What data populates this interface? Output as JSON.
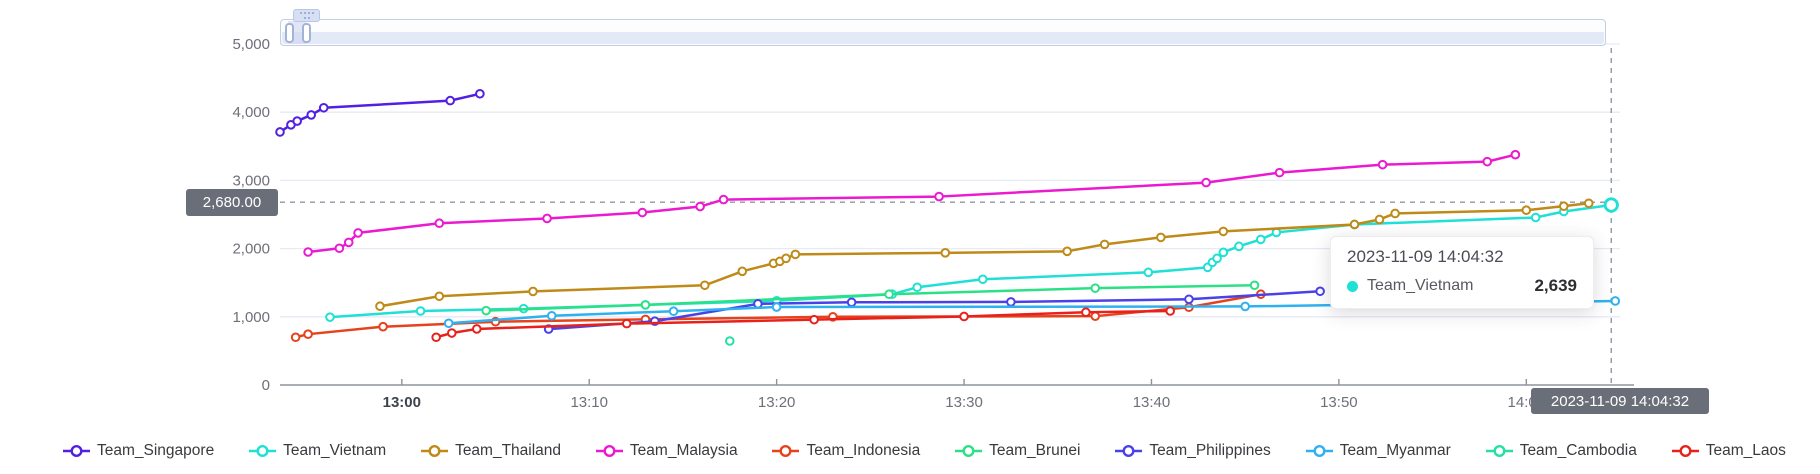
{
  "theme": {
    "grid_line_color": "#e7eaf3",
    "axis_line_color": "#8d939e",
    "pointer_dash_color": "#8f96a3",
    "pointer_label_bg": "#696e78"
  },
  "chart_data": {
    "type": "line",
    "title": "",
    "xlabel": "",
    "ylabel": "",
    "grid": true,
    "legend_position": "bottom",
    "x_axis": {
      "range": [
        "12:53:30",
        "14:05:00"
      ],
      "ticks": [
        {
          "label": "13:00",
          "time": "13:00:00",
          "emphasis": true
        },
        {
          "label": "13:10",
          "time": "13:10:00",
          "emphasis": false
        },
        {
          "label": "13:20",
          "time": "13:20:00",
          "emphasis": false
        },
        {
          "label": "13:30",
          "time": "13:30:00",
          "emphasis": false
        },
        {
          "label": "13:40",
          "time": "13:40:00",
          "emphasis": false
        },
        {
          "label": "13:50",
          "time": "13:50:00",
          "emphasis": false
        },
        {
          "label": "14:00",
          "time": "14:00:00",
          "emphasis": false
        }
      ]
    },
    "y_axis": {
      "range": [
        0,
        5000
      ],
      "ticks": [
        {
          "label": "0",
          "value": 0
        },
        {
          "label": "1,000",
          "value": 1000
        },
        {
          "label": "2,000",
          "value": 2000
        },
        {
          "label": "3,000",
          "value": 3000
        },
        {
          "label": "4,000",
          "value": 4000
        },
        {
          "label": "5,000",
          "value": 5000
        }
      ]
    },
    "series": [
      {
        "name": "Team_Singapore",
        "color": "#5220e0",
        "points": [
          [
            "12:53:30",
            3710
          ],
          [
            "12:54:05",
            3815
          ],
          [
            "12:54:25",
            3870
          ],
          [
            "12:55:10",
            3960
          ],
          [
            "12:55:50",
            4065
          ],
          [
            "13:02:35",
            4170
          ],
          [
            "13:04:10",
            4270
          ]
        ]
      },
      {
        "name": "Team_Vietnam",
        "color": "#1ee0d5",
        "emphasized_last": true,
        "points": [
          [
            "12:56:10",
            995
          ],
          [
            "13:01:00",
            1085
          ],
          [
            "13:06:30",
            1120
          ],
          [
            "13:13:00",
            1175
          ],
          [
            "13:20:00",
            1235
          ],
          [
            "13:26:10",
            1331
          ],
          [
            "13:27:30",
            1433
          ],
          [
            "13:31:00",
            1550
          ],
          [
            "13:39:50",
            1652
          ],
          [
            "13:43:00",
            1725
          ],
          [
            "13:43:15",
            1798
          ],
          [
            "13:43:30",
            1857
          ],
          [
            "13:43:50",
            1945
          ],
          [
            "13:44:40",
            2033
          ],
          [
            "13:45:50",
            2135
          ],
          [
            "13:46:40",
            2237
          ],
          [
            "13:50:50",
            2354
          ],
          [
            "14:00:30",
            2456
          ],
          [
            "14:02:00",
            2544
          ],
          [
            "14:04:32",
            2639
          ]
        ]
      },
      {
        "name": "Team_Thailand",
        "color": "#bf8a18",
        "points": [
          [
            "12:58:50",
            1155
          ],
          [
            "13:02:00",
            1301
          ],
          [
            "13:07:00",
            1372
          ],
          [
            "13:16:10",
            1462
          ],
          [
            "13:18:10",
            1667
          ],
          [
            "13:19:50",
            1784
          ],
          [
            "13:20:10",
            1813
          ],
          [
            "13:20:30",
            1857
          ],
          [
            "13:21:00",
            1915
          ],
          [
            "13:29:00",
            1938
          ],
          [
            "13:35:30",
            1960
          ],
          [
            "13:37:30",
            2062
          ],
          [
            "13:40:30",
            2164
          ],
          [
            "13:43:50",
            2252
          ],
          [
            "13:50:50",
            2354
          ],
          [
            "13:52:10",
            2427
          ],
          [
            "13:53:00",
            2515
          ],
          [
            "14:00:00",
            2563
          ],
          [
            "14:02:00",
            2622
          ],
          [
            "14:03:20",
            2665
          ]
        ]
      },
      {
        "name": "Team_Malaysia",
        "color": "#eb1ad0",
        "points": [
          [
            "12:55:00",
            1950
          ],
          [
            "12:56:40",
            2005
          ],
          [
            "12:57:10",
            2091
          ],
          [
            "12:57:40",
            2230
          ],
          [
            "13:02:00",
            2372
          ],
          [
            "13:07:45",
            2442
          ],
          [
            "13:12:50",
            2529
          ],
          [
            "13:15:55",
            2617
          ],
          [
            "13:17:10",
            2719
          ],
          [
            "13:28:40",
            2763
          ],
          [
            "13:42:55",
            2968
          ],
          [
            "13:46:50",
            3114
          ],
          [
            "13:52:20",
            3231
          ],
          [
            "13:57:55",
            3275
          ],
          [
            "13:59:25",
            3377
          ]
        ]
      },
      {
        "name": "Team_Indonesia",
        "color": "#e6421c",
        "points": [
          [
            "12:54:20",
            700
          ],
          [
            "12:55:00",
            745
          ],
          [
            "12:59:00",
            855
          ],
          [
            "13:05:00",
            928
          ],
          [
            "13:13:00",
            962
          ],
          [
            "13:23:00",
            1000
          ],
          [
            "13:37:00",
            1009
          ],
          [
            "13:42:00",
            1140
          ],
          [
            "13:45:50",
            1331
          ]
        ]
      },
      {
        "name": "Team_Brunei",
        "color": "#2ce087",
        "points": [
          [
            "13:04:30",
            1090
          ],
          [
            "13:13:00",
            1175
          ],
          [
            "13:26:00",
            1331
          ],
          [
            "13:37:00",
            1420
          ],
          [
            "13:45:30",
            1462
          ]
        ]
      },
      {
        "name": "Team_Philippines",
        "color": "#4a41e8",
        "points": [
          [
            "13:07:50",
            820
          ],
          [
            "13:13:30",
            935
          ],
          [
            "13:19:00",
            1190
          ],
          [
            "13:24:00",
            1213
          ],
          [
            "13:32:30",
            1218
          ],
          [
            "13:42:00",
            1257
          ],
          [
            "13:49:00",
            1374
          ]
        ]
      },
      {
        "name": "Team_Myanmar",
        "color": "#2fb1f0",
        "points": [
          [
            "13:02:30",
            905
          ],
          [
            "13:08:00",
            1015
          ],
          [
            "13:14:30",
            1082
          ],
          [
            "13:20:00",
            1143
          ],
          [
            "13:45:00",
            1152
          ],
          [
            "14:04:45",
            1232
          ]
        ]
      },
      {
        "name": "Team_Cambodia",
        "color": "#25e0a5",
        "points": [
          [
            "13:17:30",
            645
          ]
        ]
      },
      {
        "name": "Team_Laos",
        "color": "#e7211b",
        "points": [
          [
            "13:01:50",
            700
          ],
          [
            "13:02:40",
            762
          ],
          [
            "13:04:00",
            822
          ],
          [
            "13:12:00",
            900
          ],
          [
            "13:22:00",
            958
          ],
          [
            "13:30:00",
            1005
          ],
          [
            "13:36:30",
            1067
          ],
          [
            "13:41:00",
            1085
          ]
        ]
      }
    ]
  },
  "axis_pointer": {
    "y_label": "2,680.00",
    "y_value": 2680,
    "x_label": "2023-11-09 14:04:32",
    "x_time": "14:04:32"
  },
  "tooltip": {
    "title": "2023-11-09 14:04:32",
    "series_name": "Team_Vietnam",
    "series_color": "#1ee0d5",
    "value_display": "2,639"
  }
}
